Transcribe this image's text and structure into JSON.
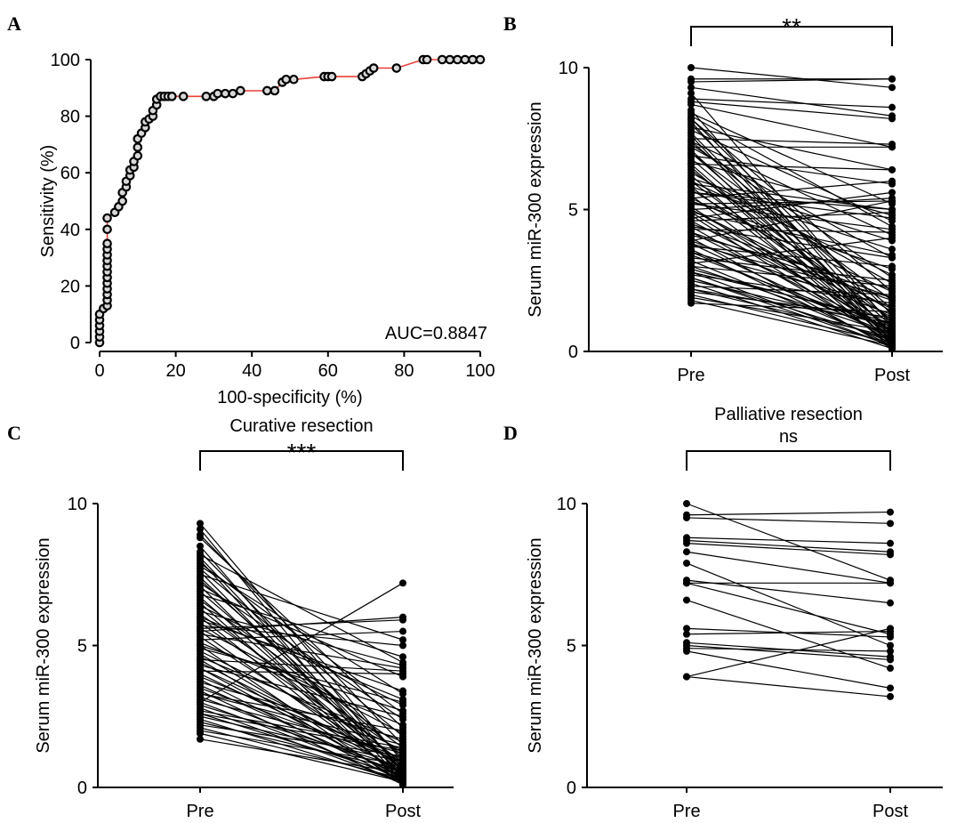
{
  "chart_data": [
    {
      "panel": "A",
      "type": "line",
      "title": "",
      "xlabel": "100-specificity (%)",
      "ylabel": "Sensitivity (%)",
      "xlim": [
        0,
        100
      ],
      "ylim": [
        0,
        100
      ],
      "xticks": [
        "0",
        "20",
        "40",
        "60",
        "80",
        "100"
      ],
      "yticks": [
        "0",
        "20",
        "40",
        "60",
        "80",
        "100"
      ],
      "annotation": "AUC=0.8847",
      "line_color": "#e8413a",
      "marker": "open circle",
      "points": [
        [
          0,
          0
        ],
        [
          0,
          2
        ],
        [
          0,
          4
        ],
        [
          0,
          6
        ],
        [
          0,
          8
        ],
        [
          0,
          10
        ],
        [
          1,
          12
        ],
        [
          2,
          13
        ],
        [
          2,
          15
        ],
        [
          2,
          17
        ],
        [
          2,
          19
        ],
        [
          2,
          21
        ],
        [
          2,
          23
        ],
        [
          2,
          25
        ],
        [
          2,
          27
        ],
        [
          2,
          29
        ],
        [
          2,
          31
        ],
        [
          2,
          33
        ],
        [
          2,
          35
        ],
        [
          2,
          40
        ],
        [
          2,
          44
        ],
        [
          4,
          46
        ],
        [
          5,
          48
        ],
        [
          6,
          50
        ],
        [
          6,
          53
        ],
        [
          7,
          55
        ],
        [
          7,
          57
        ],
        [
          8,
          59
        ],
        [
          8,
          61
        ],
        [
          9,
          62
        ],
        [
          9,
          64
        ],
        [
          10,
          66
        ],
        [
          10,
          69
        ],
        [
          10,
          72
        ],
        [
          11,
          74
        ],
        [
          12,
          76
        ],
        [
          12,
          78
        ],
        [
          13,
          79
        ],
        [
          14,
          80
        ],
        [
          14,
          82
        ],
        [
          15,
          84
        ],
        [
          15,
          86
        ],
        [
          16,
          87
        ],
        [
          17,
          87
        ],
        [
          18,
          87
        ],
        [
          19,
          87
        ],
        [
          22,
          87
        ],
        [
          28,
          87
        ],
        [
          30,
          87
        ],
        [
          31,
          88
        ],
        [
          33,
          88
        ],
        [
          35,
          88
        ],
        [
          37,
          89
        ],
        [
          44,
          89
        ],
        [
          46,
          89
        ],
        [
          48,
          92
        ],
        [
          49,
          93
        ],
        [
          51,
          93
        ],
        [
          59,
          94
        ],
        [
          60,
          94
        ],
        [
          61,
          94
        ],
        [
          69,
          94
        ],
        [
          70,
          95
        ],
        [
          71,
          96
        ],
        [
          72,
          97
        ],
        [
          78,
          97
        ],
        [
          85,
          100
        ],
        [
          86,
          100
        ],
        [
          90,
          100
        ],
        [
          92,
          100
        ],
        [
          94,
          100
        ],
        [
          96,
          100
        ],
        [
          98,
          100
        ],
        [
          100,
          100
        ]
      ]
    },
    {
      "panel": "B",
      "type": "line",
      "title": "",
      "significance": "**",
      "categories": [
        "Pre",
        "Post"
      ],
      "ylabel": "Serum miR-300 expression",
      "ylim": [
        0,
        10
      ],
      "yticks": [
        "0",
        "5",
        "10"
      ],
      "pairs": [
        [
          10.0,
          9.3
        ],
        [
          9.6,
          9.6
        ],
        [
          9.5,
          9.6
        ],
        [
          9.3,
          8.3
        ],
        [
          9.1,
          0.9
        ],
        [
          8.9,
          8.6
        ],
        [
          8.8,
          8.2
        ],
        [
          8.7,
          7.2
        ],
        [
          8.5,
          0.5
        ],
        [
          8.4,
          5.2
        ],
        [
          8.3,
          4.4
        ],
        [
          8.2,
          2.1
        ],
        [
          8.1,
          0.3
        ],
        [
          8.0,
          1.0
        ],
        [
          7.9,
          6.4
        ],
        [
          7.8,
          4.6
        ],
        [
          7.7,
          0.6
        ],
        [
          7.6,
          0.2
        ],
        [
          7.5,
          7.3
        ],
        [
          7.4,
          1.5
        ],
        [
          7.3,
          2.6
        ],
        [
          7.2,
          3.3
        ],
        [
          7.2,
          7.2
        ],
        [
          7.1,
          0.4
        ],
        [
          7.0,
          1.8
        ],
        [
          6.9,
          5.9
        ],
        [
          6.8,
          0.7
        ],
        [
          6.7,
          4.8
        ],
        [
          6.6,
          6.4
        ],
        [
          6.5,
          0.3
        ],
        [
          6.4,
          1.1
        ],
        [
          6.3,
          2.4
        ],
        [
          6.2,
          0.1
        ],
        [
          6.1,
          3.9
        ],
        [
          6.0,
          0.8
        ],
        [
          5.9,
          5.0
        ],
        [
          5.8,
          0.5
        ],
        [
          5.7,
          1.4
        ],
        [
          5.6,
          5.0
        ],
        [
          5.6,
          4.7
        ],
        [
          5.5,
          0.2
        ],
        [
          5.4,
          6.0
        ],
        [
          5.3,
          2.9
        ],
        [
          5.2,
          5.3
        ],
        [
          5.2,
          4.3
        ],
        [
          5.1,
          0.6
        ],
        [
          5.0,
          5.4
        ],
        [
          5.0,
          1.2
        ],
        [
          4.9,
          3.4
        ],
        [
          4.8,
          0.3
        ],
        [
          4.7,
          5.6
        ],
        [
          4.6,
          0.9
        ],
        [
          4.5,
          1.9
        ],
        [
          4.4,
          0.4
        ],
        [
          4.3,
          4.2
        ],
        [
          4.2,
          0.7
        ],
        [
          4.1,
          2.2
        ],
        [
          4.0,
          0.1
        ],
        [
          3.9,
          5.3
        ],
        [
          3.9,
          1.3
        ],
        [
          3.8,
          0.5
        ],
        [
          3.7,
          3.0
        ],
        [
          3.6,
          0.2
        ],
        [
          3.5,
          1.6
        ],
        [
          3.4,
          0.8
        ],
        [
          3.3,
          2.5
        ],
        [
          3.2,
          0.3
        ],
        [
          3.1,
          4.0
        ],
        [
          3.0,
          0.6
        ],
        [
          2.9,
          1.0
        ],
        [
          2.8,
          0.2
        ],
        [
          2.7,
          1.7
        ],
        [
          2.6,
          0.4
        ],
        [
          2.5,
          0.9
        ],
        [
          2.4,
          0.1
        ],
        [
          2.3,
          2.0
        ],
        [
          2.2,
          0.5
        ],
        [
          2.1,
          1.2
        ],
        [
          2.0,
          0.3
        ],
        [
          1.9,
          0.7
        ],
        [
          1.8,
          0.2
        ],
        [
          1.7,
          1.4
        ],
        [
          4.6,
          4.9
        ],
        [
          4.4,
          3.3
        ],
        [
          5.0,
          1.5
        ],
        [
          6.0,
          2.7
        ],
        [
          7.0,
          0.9
        ],
        [
          3.5,
          0.6
        ],
        [
          2.8,
          1.1
        ],
        [
          3.0,
          2.3
        ],
        [
          4.2,
          1.8
        ],
        [
          5.8,
          3.6
        ],
        [
          6.6,
          0.4
        ],
        [
          7.4,
          4.1
        ],
        [
          8.2,
          1.3
        ],
        [
          2.2,
          1.0
        ],
        [
          2.6,
          0.2
        ],
        [
          3.8,
          1.9
        ],
        [
          4.9,
          0.7
        ],
        [
          5.4,
          2.1
        ]
      ]
    },
    {
      "panel": "C",
      "type": "line",
      "title": "Curative resection",
      "significance": "***",
      "categories": [
        "Pre",
        "Post"
      ],
      "ylabel": "Serum miR-300 expression",
      "ylim": [
        0,
        10
      ],
      "yticks": [
        "0",
        "5",
        "10"
      ],
      "pairs": [
        [
          9.3,
          0.9
        ],
        [
          9.1,
          0.5
        ],
        [
          8.9,
          1.5
        ],
        [
          8.8,
          2.1
        ],
        [
          8.5,
          0.3
        ],
        [
          8.3,
          1.0
        ],
        [
          8.2,
          4.4
        ],
        [
          8.1,
          0.6
        ],
        [
          8.0,
          0.2
        ],
        [
          7.9,
          2.6
        ],
        [
          7.8,
          3.3
        ],
        [
          7.7,
          1.8
        ],
        [
          7.6,
          0.4
        ],
        [
          7.5,
          5.2
        ],
        [
          7.4,
          0.7
        ],
        [
          7.3,
          1.1
        ],
        [
          7.2,
          2.4
        ],
        [
          7.1,
          0.1
        ],
        [
          7.0,
          3.9
        ],
        [
          6.9,
          0.8
        ],
        [
          6.8,
          4.6
        ],
        [
          6.7,
          0.5
        ],
        [
          6.6,
          1.4
        ],
        [
          6.5,
          0.2
        ],
        [
          6.4,
          2.9
        ],
        [
          6.3,
          0.6
        ],
        [
          6.2,
          4.3
        ],
        [
          6.1,
          1.2
        ],
        [
          6.0,
          0.3
        ],
        [
          5.9,
          3.4
        ],
        [
          5.8,
          0.9
        ],
        [
          5.7,
          5.0
        ],
        [
          5.6,
          1.9
        ],
        [
          5.5,
          0.4
        ],
        [
          5.5,
          6.0
        ],
        [
          5.4,
          4.2
        ],
        [
          5.3,
          0.7
        ],
        [
          5.2,
          5.5
        ],
        [
          5.1,
          2.2
        ],
        [
          5.0,
          0.1
        ],
        [
          4.9,
          3.0
        ],
        [
          4.8,
          1.3
        ],
        [
          4.7,
          0.5
        ],
        [
          4.6,
          1.6
        ],
        [
          4.5,
          0.2
        ],
        [
          4.4,
          0.8
        ],
        [
          4.3,
          2.5
        ],
        [
          4.2,
          0.3
        ],
        [
          4.1,
          4.0
        ],
        [
          4.0,
          0.6
        ],
        [
          3.9,
          1.0
        ],
        [
          3.8,
          0.2
        ],
        [
          3.7,
          1.7
        ],
        [
          3.6,
          0.4
        ],
        [
          3.5,
          0.9
        ],
        [
          3.4,
          0.1
        ],
        [
          3.3,
          2.0
        ],
        [
          3.2,
          0.5
        ],
        [
          3.1,
          1.2
        ],
        [
          3.0,
          0.3
        ],
        [
          2.9,
          0.7
        ],
        [
          2.8,
          0.2
        ],
        [
          2.7,
          1.4
        ],
        [
          2.6,
          0.4
        ],
        [
          2.5,
          0.9
        ],
        [
          2.4,
          0.2
        ],
        [
          2.3,
          0.6
        ],
        [
          2.2,
          1.1
        ],
        [
          2.1,
          0.3
        ],
        [
          2.0,
          0.8
        ],
        [
          1.9,
          0.2
        ],
        [
          1.7,
          0.5
        ],
        [
          3.0,
          7.2
        ],
        [
          5.6,
          5.9
        ],
        [
          4.5,
          4.1
        ],
        [
          6.0,
          3.1
        ],
        [
          3.3,
          1.5
        ],
        [
          4.2,
          0.9
        ],
        [
          2.6,
          1.3
        ],
        [
          5.0,
          2.7
        ]
      ]
    },
    {
      "panel": "D",
      "type": "line",
      "title": "Palliative resection",
      "significance": "ns",
      "categories": [
        "Pre",
        "Post"
      ],
      "ylabel": "Serum miR-300 expression",
      "ylim": [
        0,
        10
      ],
      "yticks": [
        "0",
        "5",
        "10"
      ],
      "pairs": [
        [
          10.0,
          7.3
        ],
        [
          9.6,
          9.7
        ],
        [
          9.5,
          9.3
        ],
        [
          8.8,
          8.6
        ],
        [
          8.7,
          8.3
        ],
        [
          8.6,
          8.2
        ],
        [
          8.3,
          7.2
        ],
        [
          7.9,
          5.0
        ],
        [
          7.3,
          6.5
        ],
        [
          7.2,
          5.4
        ],
        [
          6.6,
          4.2
        ],
        [
          5.6,
          5.3
        ],
        [
          5.4,
          5.5
        ],
        [
          5.1,
          4.6
        ],
        [
          5.0,
          4.5
        ],
        [
          4.9,
          4.8
        ],
        [
          4.8,
          3.5
        ],
        [
          3.9,
          5.6
        ],
        [
          3.9,
          3.2
        ],
        [
          7.2,
          7.2
        ]
      ]
    }
  ]
}
